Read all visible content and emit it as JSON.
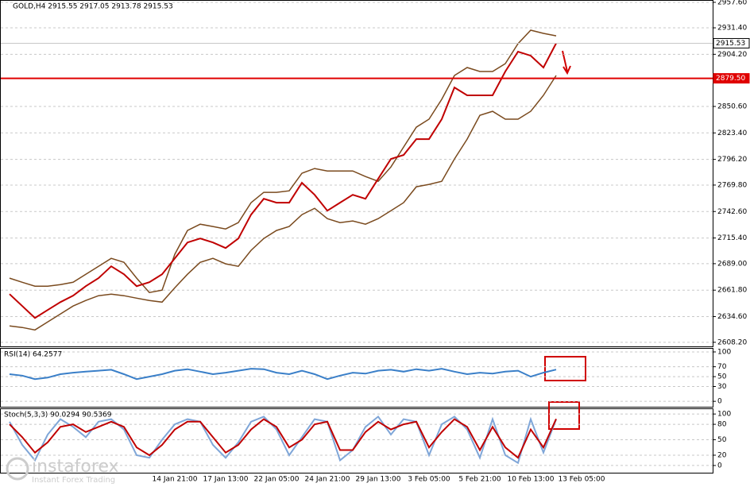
{
  "chart_data": [
    {
      "type": "line",
      "title": "GOLD,H4 2915.55 2917.05 2913.78 2915.53",
      "ylim": [
        2604,
        2960
      ],
      "yticks": [
        {
          "value": 2957.6,
          "label": "2957.60"
        },
        {
          "value": 2931.4,
          "label": "2931.40"
        },
        {
          "value": 2904.2,
          "label": "2904.20"
        },
        {
          "value": 2850.6,
          "label": "2850.60"
        },
        {
          "value": 2823.4,
          "label": "2823.40"
        },
        {
          "value": 2796.2,
          "label": "2796.20"
        },
        {
          "value": 2769.8,
          "label": "2769.80"
        },
        {
          "value": 2742.6,
          "label": "2742.60"
        },
        {
          "value": 2715.4,
          "label": "2715.40"
        },
        {
          "value": 2689.0,
          "label": "2689.00"
        },
        {
          "value": 2661.8,
          "label": "2661.80"
        },
        {
          "value": 2634.6,
          "label": "2634.60"
        },
        {
          "value": 2608.2,
          "label": "2608.20"
        }
      ],
      "grid": true,
      "levels": [
        {
          "value": 2879.5,
          "label": "2879.50",
          "color": "#e00000"
        },
        {
          "value": 2915.53,
          "label": "2915.53",
          "color": "#ffffff"
        }
      ],
      "series": [
        {
          "name": "Upper band",
          "color": "#7a4a1e",
          "values": [
            2674.1,
            2669.9,
            2665.9,
            2665.9,
            2667.5,
            2669.9,
            2678.1,
            2686.3,
            2694.5,
            2690.4,
            2674.1,
            2659.4,
            2661.8,
            2698.6,
            2723.1,
            2729.6,
            2727.2,
            2724.7,
            2731.2,
            2751.7,
            2762.3,
            2762.3,
            2763.9,
            2781.9,
            2786.8,
            2784.3,
            2784.3,
            2784.3,
            2778.6,
            2773.7,
            2788.4,
            2808.9,
            2829.3,
            2837.5,
            2857.9,
            2882.4,
            2890.6,
            2886.5,
            2886.5,
            2894.6,
            2915.1,
            2929,
            2925.7,
            2923.2,
            null,
            null
          ]
        },
        {
          "name": "Lower band",
          "color": "#7a4a1e",
          "values": [
            2625,
            2623.4,
            2620.9,
            2629.1,
            2637.3,
            2645.5,
            2651.2,
            2656.1,
            2657.7,
            2656.1,
            2653.6,
            2651.2,
            2649.5,
            2664.2,
            2678.1,
            2690.4,
            2694.5,
            2688.8,
            2686.3,
            2702.7,
            2714.9,
            2723.1,
            2727.2,
            2739.4,
            2745.9,
            2735.3,
            2731.2,
            2732.9,
            2729.6,
            2735.3,
            2743.5,
            2751.7,
            2768,
            2770.5,
            2773.7,
            2796.6,
            2817,
            2841.5,
            2845.6,
            2837.5,
            2837.5,
            2845.6,
            2862,
            2882.4,
            null,
            null
          ]
        },
        {
          "name": "Close",
          "color": "#c00000",
          "values": [
            2657.7,
            2645.5,
            2633.2,
            2641.4,
            2649.5,
            2656.1,
            2665.9,
            2674.1,
            2686.3,
            2678.1,
            2665.9,
            2670,
            2678.1,
            2694.5,
            2710.8,
            2714.9,
            2710.8,
            2705.1,
            2714.9,
            2739.4,
            2755.7,
            2751.7,
            2751.7,
            2772.1,
            2759.8,
            2743.5,
            2751.7,
            2759.8,
            2755.7,
            2776.2,
            2796.6,
            2800.7,
            2817,
            2817,
            2837.5,
            2870.1,
            2862,
            2862,
            2862,
            2886.5,
            2906.9,
            2902.8,
            2890.6,
            2915.5,
            null,
            null
          ]
        }
      ]
    },
    {
      "type": "line",
      "title": "RSI(14) 64.2577",
      "ylim": [
        -11,
        108
      ],
      "yticks": [
        100,
        70,
        50,
        30,
        0
      ],
      "grid": true,
      "series": [
        {
          "name": "RSI",
          "color": "#3a7fc8",
          "values": [
            55,
            52,
            45,
            48,
            55,
            58,
            60,
            62,
            64,
            55,
            45,
            50,
            55,
            62,
            65,
            60,
            55,
            58,
            62,
            66,
            65,
            58,
            55,
            62,
            55,
            45,
            52,
            58,
            56,
            62,
            64,
            60,
            65,
            62,
            66,
            60,
            55,
            58,
            56,
            60,
            62,
            50,
            58,
            64.3,
            null,
            null
          ]
        }
      ]
    },
    {
      "type": "line",
      "title": "Stoch(5,3,3) 90.0294 90.5369",
      "ylim": [
        -14,
        111
      ],
      "yticks": [
        100,
        80,
        50,
        20,
        0
      ],
      "grid": true,
      "categories": [
        null,
        null,
        null,
        null,
        null,
        null,
        null,
        null,
        null,
        null,
        null,
        null,
        null,
        "14 Jan 21:00",
        null,
        null,
        null,
        "17 Jan 13:00",
        null,
        null,
        null,
        "22 Jan 05:00",
        null,
        null,
        null,
        "24 Jan 21:00",
        null,
        null,
        null,
        "29 Jan 13:00",
        null,
        null,
        null,
        "3 Feb 05:00",
        null,
        null,
        null,
        "5 Feb 21:00",
        null,
        null,
        null,
        "10 Feb 13:00",
        null,
        null,
        null,
        "13 Feb 05:00"
      ],
      "series": [
        {
          "name": "Main",
          "color": "#7fa6d8",
          "values": [
            85,
            40,
            10,
            60,
            90,
            75,
            55,
            85,
            90,
            70,
            20,
            15,
            50,
            80,
            90,
            85,
            40,
            15,
            45,
            85,
            95,
            70,
            20,
            55,
            90,
            85,
            10,
            30,
            75,
            95,
            60,
            90,
            85,
            20,
            80,
            95,
            70,
            15,
            90,
            20,
            5,
            90,
            25,
            90,
            null,
            null
          ]
        },
        {
          "name": "Signal",
          "color": "#c00000",
          "values": [
            80,
            55,
            25,
            45,
            75,
            80,
            65,
            75,
            85,
            75,
            35,
            20,
            40,
            70,
            85,
            85,
            55,
            25,
            40,
            70,
            90,
            75,
            35,
            50,
            80,
            85,
            30,
            30,
            65,
            85,
            70,
            80,
            85,
            35,
            65,
            90,
            75,
            30,
            75,
            35,
            15,
            70,
            35,
            90.5,
            null,
            null
          ]
        }
      ]
    }
  ],
  "logo": {
    "name": "instaforex",
    "tagline": "Instant Forex Trading"
  }
}
